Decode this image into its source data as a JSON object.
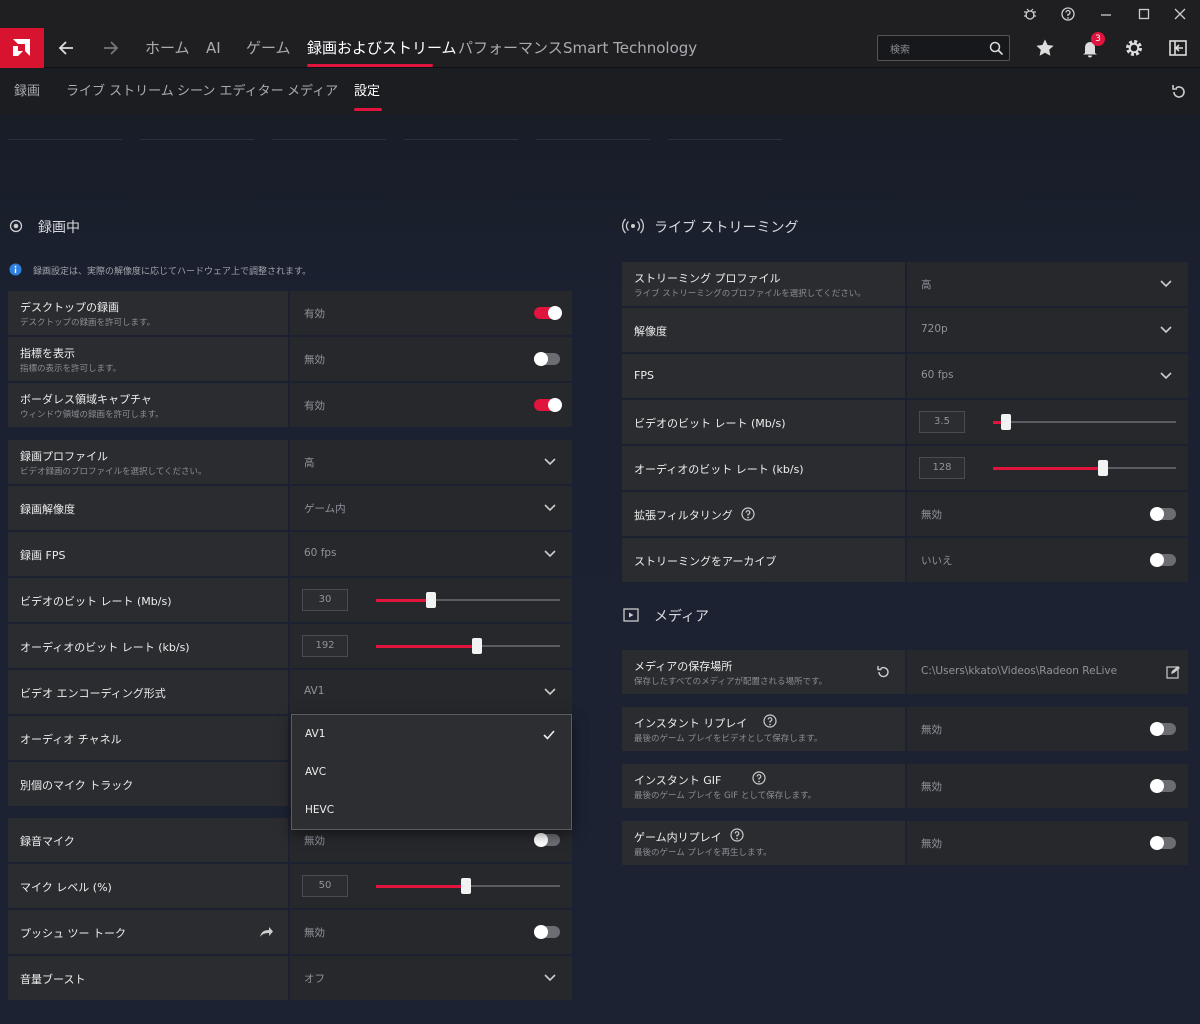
{
  "nav": {
    "items": [
      "ホーム",
      "AI",
      "ゲーム",
      "録画およびストリーム",
      "パフォーマンス",
      "Smart Technology"
    ],
    "active": 3,
    "search_placeholder": "検索",
    "notification_count": 3
  },
  "subnav": {
    "items": [
      "録画",
      "ライブ ストリーム",
      "シーン エディター",
      "メディア",
      "設定"
    ],
    "active": 4
  },
  "recording": {
    "title": "録画中",
    "info": "録画設定は、実際の解像度に応じてハードウェア上で調整されます。",
    "groups": [
      {
        "rows": [
          {
            "label": "デスクトップの録画",
            "description": "デスクトップの録画を許可します。",
            "value": "有効",
            "control": "toggle",
            "on": true
          },
          {
            "label": "指標を表示",
            "description": "指標の表示を許可します。",
            "value": "無効",
            "control": "toggle",
            "on": false
          },
          {
            "label": "ボーダレス領域キャプチャ",
            "description": "ウィンドウ領域の録画を許可します。",
            "value": "有効",
            "control": "toggle",
            "on": true
          }
        ]
      },
      {
        "rows": [
          {
            "label": "録画プロファイル",
            "description": "ビデオ録画のプロファイルを選択してください。",
            "value": "高",
            "control": "dropdown"
          },
          {
            "label": "録画解像度",
            "value": "ゲーム内",
            "control": "dropdown"
          },
          {
            "label": "録画 FPS",
            "value": "60 fps",
            "control": "dropdown"
          },
          {
            "label": "ビデオのビット レート (Mb/s)",
            "value": 30,
            "control": "slider"
          },
          {
            "label": "オーディオのビット レート (kb/s)",
            "value": 192,
            "control": "slider"
          },
          {
            "label": "ビデオ エンコーディング形式",
            "value": "AV1",
            "control": "dropdown"
          },
          {
            "label": "オーディオ チャネル",
            "control": "none"
          },
          {
            "label": "別個のマイク トラック",
            "control": "none"
          }
        ]
      },
      {
        "rows": [
          {
            "label": "録音マイク",
            "value": "無効",
            "control": "toggle",
            "on": false
          },
          {
            "label": "マイク レベル (%)",
            "value": 50,
            "control": "slider"
          },
          {
            "label": "プッシュ ツー トーク",
            "value": "無効",
            "control": "toggle",
            "on": false,
            "shortcut": true
          },
          {
            "label": "音量ブースト",
            "value": "オフ",
            "control": "dropdown"
          }
        ]
      }
    ]
  },
  "dropdown_menu": {
    "options": [
      "AV1",
      "AVC",
      "HEVC"
    ],
    "selected": 0
  },
  "streaming": {
    "title": "ライブ ストリーミング",
    "rows": [
      {
        "label": "ストリーミング プロファイル",
        "description": "ライブ ストリーミングのプロファイルを選択してください。",
        "value": "高",
        "control": "dropdown"
      },
      {
        "label": "解像度",
        "value": "720p",
        "control": "dropdown"
      },
      {
        "label": "FPS",
        "value": "60 fps",
        "control": "dropdown"
      },
      {
        "label": "ビデオのビット レート (Mb/s)",
        "value": 3.5,
        "control": "slider"
      },
      {
        "label": "オーディオのビット レート (kb/s)",
        "value": 128,
        "control": "slider"
      },
      {
        "label": "拡張フィルタリング",
        "help": true,
        "value": "無効",
        "control": "toggle",
        "on": false
      },
      {
        "label": "ストリーミングをアーカイブ",
        "value": "いいえ",
        "control": "toggle",
        "on": false
      }
    ]
  },
  "media": {
    "title": "メディア",
    "rows": [
      {
        "label": "メディアの保存場所",
        "description": "保存したすべてのメディアが配置される場所です。",
        "value": "C:\\Users\\kkato\\Videos\\Radeon ReLive",
        "control": "path"
      },
      {
        "label": "インスタント リプレイ",
        "help": true,
        "description": "最後のゲーム プレイをビデオとして保存します。",
        "value": "無効",
        "control": "toggle",
        "on": false
      },
      {
        "label": "インスタント GIF",
        "help": true,
        "description": "最後のゲーム プレイを GIF として保存します。",
        "value": "無効",
        "control": "toggle",
        "on": false
      },
      {
        "label": "ゲーム内リプレイ",
        "help": true,
        "description": "最後のゲーム プレイを再生します。",
        "value": "無効",
        "control": "toggle",
        "on": false
      }
    ]
  }
}
